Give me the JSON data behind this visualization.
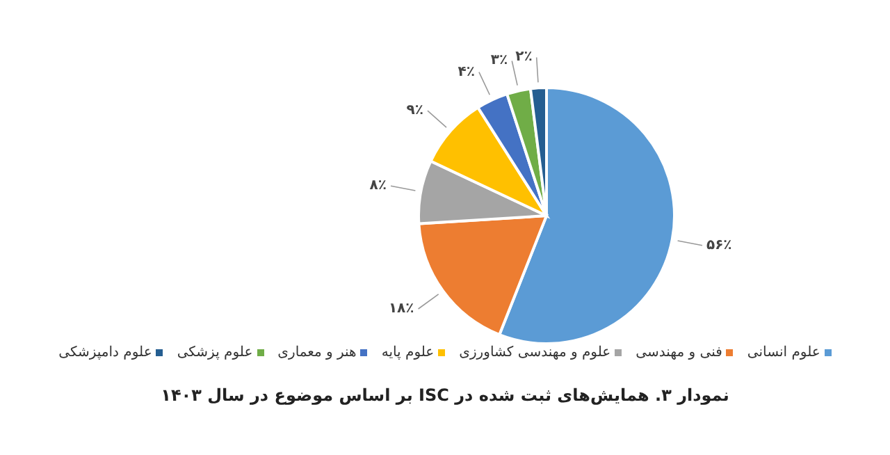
{
  "chart_data": {
    "type": "pie",
    "title": "نمودار ۳. همایش‌های ثبت شده در ISC بر اساس موضوع در سال ۱۴۰۳",
    "categories": [
      "علوم انسانی",
      "فنی و مهندسی",
      "علوم و مهندسی کشاورزی",
      "علوم پایه",
      "هنر و معماری",
      "علوم پزشکی",
      "علوم دامپزشکی"
    ],
    "values": [
      56,
      18,
      8,
      9,
      4,
      3,
      2
    ],
    "colors": [
      "#5b9bd5",
      "#ed7d31",
      "#a5a5a5",
      "#ffc000",
      "#4472c4",
      "#70ad47",
      "#255e91"
    ],
    "value_labels": [
      "۵۶٪",
      "۱۸٪",
      "۸٪",
      "۹٪",
      "۴٪",
      "۳٪",
      "۲٪"
    ],
    "legend": "bottom"
  }
}
